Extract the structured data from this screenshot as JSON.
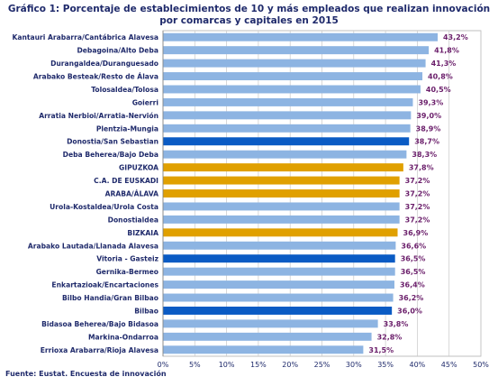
{
  "chart_data": {
    "type": "bar",
    "orientation": "horizontal",
    "title": "Gráfico 1: Porcentaje de establecimientos de 10 y más empleados que realizan innovación por comarcas y capitales en 2015",
    "source": "Fuente: Eustat. Encuesta de innovación",
    "categories": [
      "Kantauri Arabarra/Cantábrica Alavesa",
      "Debagoina/Alto Deba",
      "Durangaldea/Duranguesado",
      "Arabako Besteak/Resto de Álava",
      "Tolosaldea/Tolosa",
      "Goierri",
      "Arratia Nerbioi/Arratia-Nervión",
      "Plentzia-Mungia",
      "Donostia/San Sebastian",
      "Deba Beherea/Bajo Deba",
      "GIPUZKOA",
      "C.A. DE EUSKADI",
      "ARABA/ÁLAVA",
      "Urola-Kostaldea/Urola Costa",
      "Donostialdea",
      "BIZKAIA",
      "Arabako Lautada/Llanada Alavesa",
      "Vitoria - Gasteiz",
      "Gernika-Bermeo",
      "Enkartazioak/Encartaciones",
      "Bilbo Handia/Gran Bilbao",
      "Bilbao",
      "Bidasoa Beherea/Bajo Bidasoa",
      "Markina-Ondarroa",
      "Errioxa Arabarra/Rioja Alavesa"
    ],
    "values": [
      43.2,
      41.8,
      41.3,
      40.8,
      40.5,
      39.3,
      39.0,
      38.9,
      38.7,
      38.3,
      37.8,
      37.2,
      37.2,
      37.2,
      37.2,
      36.9,
      36.6,
      36.5,
      36.5,
      36.4,
      36.2,
      36.0,
      33.8,
      32.8,
      31.5
    ],
    "value_labels": [
      "43,2%",
      "41,8%",
      "41,3%",
      "40,8%",
      "40,5%",
      "39,3%",
      "39,0%",
      "38,9%",
      "38,7%",
      "38,3%",
      "37,8%",
      "37,2%",
      "37,2%",
      "37,2%",
      "37,2%",
      "36,9%",
      "36,6%",
      "36,5%",
      "36,5%",
      "36,4%",
      "36,2%",
      "36,0%",
      "33,8%",
      "32,8%",
      "31,5%"
    ],
    "bar_kind": [
      "comarca",
      "comarca",
      "comarca",
      "comarca",
      "comarca",
      "comarca",
      "comarca",
      "comarca",
      "capital",
      "comarca",
      "territorio",
      "territorio",
      "territorio",
      "comarca",
      "comarca",
      "territorio",
      "comarca",
      "capital",
      "comarca",
      "comarca",
      "comarca",
      "capital",
      "comarca",
      "comarca",
      "comarca"
    ],
    "colors": {
      "comarca": "#8db4e2",
      "capital": "#0a5bc4",
      "territorio": "#e0a000"
    },
    "xlim": [
      0,
      50
    ],
    "xticks": [
      "0%",
      "5%",
      "10%",
      "15%",
      "20%",
      "25%",
      "30%",
      "35%",
      "40%",
      "45%",
      "50%"
    ],
    "grid": true
  }
}
